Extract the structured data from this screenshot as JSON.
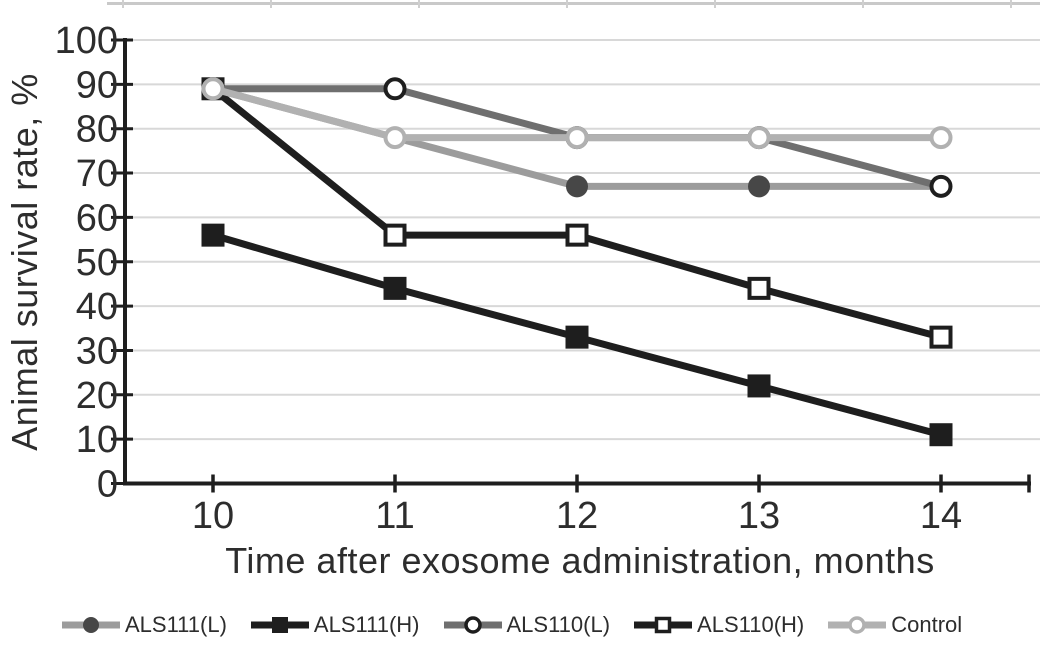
{
  "page": {
    "background": "#ffffff",
    "top_crop_border_color": "#c9c9c9"
  },
  "chart_data": {
    "type": "line",
    "title": "",
    "xlabel": "Time after exosome administration, months",
    "ylabel": "Animal survival rate, %",
    "x": [
      10,
      11,
      12,
      13,
      14
    ],
    "xticks": [
      "10",
      "11",
      "12",
      "13",
      "14"
    ],
    "yticks": [
      0,
      10,
      20,
      30,
      40,
      50,
      60,
      70,
      80,
      90,
      100
    ],
    "ylim": [
      0,
      100
    ],
    "grid": true,
    "gridline_color": "#d8d8d8",
    "axis_color": "#1e1e1e",
    "text_color": "#2d2d2d",
    "legend_position": "bottom",
    "series": [
      {
        "name": "ALS111(L)",
        "values": [
          89,
          78,
          67,
          67,
          67
        ],
        "color": "#9c9c9c",
        "marker": "circle-filled",
        "marker_color": "#474747"
      },
      {
        "name": "ALS111(H)",
        "values": [
          56,
          44,
          33,
          22,
          11
        ],
        "color": "#1e1e1e",
        "marker": "square-filled",
        "marker_color": "#1e1e1e"
      },
      {
        "name": "ALS110(L)",
        "values": [
          89,
          89,
          78,
          78,
          67
        ],
        "color": "#6f6f6f",
        "marker": "circle-open",
        "marker_color": "#1e1e1e"
      },
      {
        "name": "ALS110(H)",
        "values": [
          89,
          56,
          56,
          44,
          33
        ],
        "color": "#1e1e1e",
        "marker": "square-open",
        "marker_color": "#1e1e1e"
      },
      {
        "name": "Control",
        "values": [
          89,
          78,
          78,
          78,
          78
        ],
        "color": "#b1b1b1",
        "marker": "circle-open",
        "marker_color": "#b1b1b1"
      }
    ]
  }
}
